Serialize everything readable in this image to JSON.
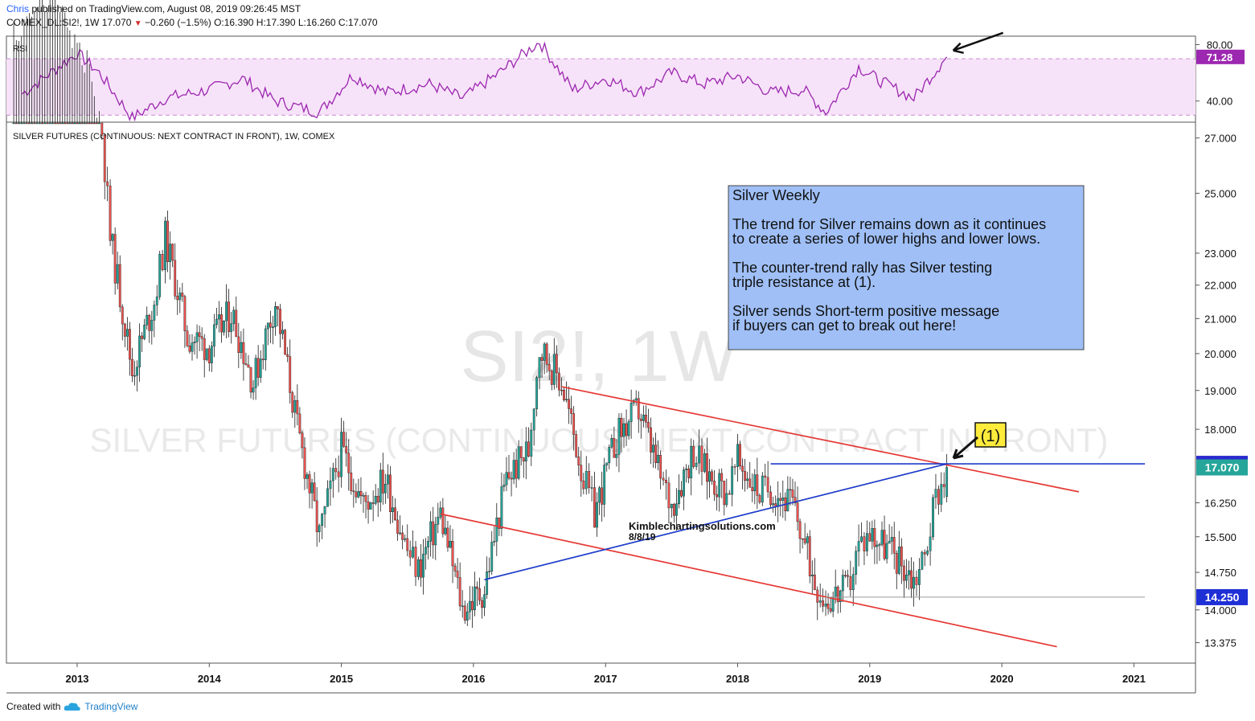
{
  "header": {
    "user": "Chris",
    "published": "published on TradingView.com, August 08, 2019 09:26:45 MST",
    "symbol_line": {
      "symbol": "COMEX_DL:SI2!, 1W",
      "last": "17.070",
      "change": "−0.260 (−1.5%)",
      "ohlc": "O:16.390 H:17.390 L:16.260 C:17.070"
    }
  },
  "watermark": {
    "line1": "SI2!, 1W",
    "line2": "SILVER FUTURES (CONTINUOUS: NEXT CONTRACT IN FRONT)"
  },
  "footer": {
    "created_with": "Created with",
    "brand": "TradingView"
  },
  "colors": {
    "up": "#26a69a",
    "down": "#ef5350",
    "channel": "#e53935",
    "support": "#1e3cc8",
    "rsi": "#9c27b0",
    "rsi_band": "#f7e3f9",
    "note_bg": "#9fbff6",
    "callout": "#ffeb3b"
  },
  "chart_data": [
    {
      "type": "line",
      "title": "RSI",
      "ylim": [
        25,
        86
      ],
      "y_ticks": [
        "80.00",
        "40.00"
      ],
      "bands": [
        30,
        70
      ],
      "current_label": "71.28",
      "x": [
        "2012-08",
        "2013-01",
        "2013-03",
        "2013-06",
        "2013-09",
        "2014-01",
        "2014-04",
        "2014-07",
        "2014-11",
        "2015-02",
        "2015-05",
        "2015-09",
        "2015-12",
        "2016-03",
        "2016-07",
        "2016-10",
        "2017-01",
        "2017-04",
        "2017-07",
        "2017-10",
        "2018-01",
        "2018-04",
        "2018-07",
        "2018-09",
        "2018-12",
        "2019-02",
        "2019-05",
        "2019-06",
        "2019-08"
      ],
      "series": [
        {
          "values": [
            45,
            74,
            60,
            28,
            42,
            48,
            56,
            40,
            32,
            58,
            46,
            52,
            42,
            58,
            82,
            48,
            56,
            46,
            60,
            52,
            58,
            46,
            48,
            32,
            64,
            54,
            42,
            52,
            71.28
          ]
        }
      ]
    },
    {
      "type": "candlestick",
      "title": "SILVER FUTURES (CONTINUOUS: NEXT CONTRACT IN FRONT), 1W, COMEX",
      "y_scale": "log",
      "ylim": [
        13.0,
        27.6
      ],
      "y_ticks": [
        "27.000",
        "25.000",
        "23.000",
        "22.000",
        "21.000",
        "20.000",
        "19.000",
        "18.000",
        "16.250",
        "15.500",
        "14.750",
        "14.000",
        "13.375"
      ],
      "x_ticks": [
        "2013",
        "2014",
        "2015",
        "2016",
        "2017",
        "2018",
        "2019",
        "2020",
        "2021"
      ],
      "price_labels": {
        "resistance": "17.155",
        "last": "17.070",
        "support": "14.250"
      },
      "series": [
        {
          "name": "SI2!",
          "x": [
            "2012-07",
            "2012-11",
            "2013-01",
            "2013-03",
            "2013-04",
            "2013-06",
            "2013-08",
            "2013-09",
            "2013-11",
            "2014-01",
            "2014-03",
            "2014-05",
            "2014-07",
            "2014-09",
            "2014-11",
            "2014-12",
            "2015-01",
            "2015-03",
            "2015-05",
            "2015-07",
            "2015-08",
            "2015-10",
            "2015-12",
            "2016-02",
            "2016-04",
            "2016-06",
            "2016-07",
            "2016-09",
            "2016-11",
            "2016-12",
            "2017-02",
            "2017-04",
            "2017-06",
            "2017-07",
            "2017-09",
            "2017-10",
            "2017-12",
            "2018-01",
            "2018-03",
            "2018-04",
            "2018-06",
            "2018-08",
            "2018-09",
            "2018-11",
            "2018-12",
            "2019-01",
            "2019-03",
            "2019-05",
            "2019-06",
            "2019-07",
            "2019-08"
          ],
          "close": [
            32.0,
            33.5,
            31.5,
            28.5,
            23.5,
            19.5,
            21.5,
            23.5,
            20.5,
            20.2,
            21.2,
            19.2,
            21.5,
            18.0,
            15.5,
            16.5,
            17.5,
            16.2,
            16.8,
            15.2,
            14.8,
            16.0,
            14.0,
            14.4,
            16.8,
            17.5,
            20.2,
            19.2,
            16.8,
            16.0,
            17.8,
            18.5,
            16.8,
            16.2,
            17.5,
            17.0,
            16.5,
            17.2,
            16.5,
            16.6,
            16.2,
            14.6,
            14.2,
            14.4,
            15.3,
            15.6,
            15.2,
            14.6,
            15.1,
            16.4,
            17.07
          ]
        }
      ],
      "lines": [
        {
          "name": "channel-upper",
          "from": [
            "2016-09",
            19.1
          ],
          "to": [
            "2020-08",
            16.5
          ]
        },
        {
          "name": "channel-lower",
          "from": [
            "2015-10",
            16.0
          ],
          "to": [
            "2020-06",
            13.3
          ]
        },
        {
          "name": "support-trend",
          "from": [
            "2016-02",
            14.6
          ],
          "to": [
            "2019-08",
            17.155
          ]
        },
        {
          "name": "resistance-level",
          "from": [
            "2018-04",
            17.155
          ],
          "to": [
            "2021-02",
            17.155
          ]
        },
        {
          "name": "support-level",
          "from": [
            "2018-09",
            14.25
          ],
          "to": [
            "2021-02",
            14.25
          ]
        }
      ],
      "annotations": {
        "note_lines": [
          "Silver Weekly",
          "",
          "The trend for Silver remains down as it continues",
          "to create a series of lower highs and lower lows.",
          "",
          "The counter-trend rally has Silver testing",
          "triple resistance at (1).",
          "",
          "Silver sends Short-term positive message",
          "if buyers can get to break out here!"
        ],
        "callout": "(1)",
        "credit": "Kimblechartingsolutions.com",
        "credit_date": "8/8/19"
      }
    }
  ]
}
